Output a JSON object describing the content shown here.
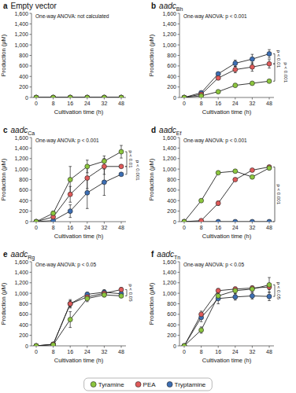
{
  "chart_data": [
    {
      "type": "line",
      "panel_label": "a",
      "title": "Empty vector",
      "legend": "bottom",
      "anova": "One-way ANOVA: not calculated",
      "annotations": [],
      "x_label": "Cultivation time (h)",
      "y_label": "Production (μM)",
      "categories": [
        0,
        8,
        16,
        24,
        32,
        48
      ],
      "ylim": [
        0,
        1600
      ],
      "yticks": [
        0,
        200,
        400,
        600,
        800,
        {
          "value": 1000,
          "label": "1,000"
        },
        {
          "value": 1200,
          "label": "1,200"
        },
        {
          "value": 1400,
          "label": "1,400"
        },
        {
          "value": 1600,
          "label": "1,600"
        }
      ],
      "series": [
        {
          "name": "Tyramine",
          "color": "#8cc63e",
          "marker": "circle",
          "values": [
            0,
            0,
            0,
            0,
            0,
            0
          ],
          "errors": [
            0,
            0,
            0,
            0,
            0,
            0
          ]
        },
        {
          "name": "PEA",
          "color": "#e05a5a",
          "marker": "circle",
          "values": [
            0,
            0,
            0,
            0,
            0,
            0
          ],
          "errors": [
            0,
            0,
            0,
            0,
            0,
            0
          ]
        },
        {
          "name": "Tryptamine",
          "color": "#3c6eb4",
          "marker": "circle",
          "values": [
            0,
            0,
            0,
            0,
            0,
            0
          ],
          "errors": [
            0,
            0,
            0,
            0,
            0,
            0
          ]
        }
      ]
    },
    {
      "type": "line",
      "panel_label": "b",
      "title": "aadc",
      "title_subscript": "Bh",
      "anova": "One-way ANOVA: p < 0.001",
      "annotations": [
        {
          "text": "p < 0.01",
          "series": [
            "PEA",
            "Tryptamine"
          ]
        },
        {
          "text": "p < 0.001",
          "series": [
            "Tyramine",
            "PEA"
          ]
        }
      ],
      "x_label": "Cultivation time (h)",
      "y_label": "Production (μM)",
      "categories": [
        0,
        8,
        16,
        24,
        32,
        48
      ],
      "ylim": [
        0,
        1600
      ],
      "yticks": [
        0,
        200,
        400,
        600,
        800,
        {
          "value": 1000,
          "label": "1,000"
        },
        {
          "value": 1200,
          "label": "1,200"
        },
        {
          "value": 1400,
          "label": "1,400"
        },
        {
          "value": 1600,
          "label": "1,600"
        }
      ],
      "series": [
        {
          "name": "Tyramine",
          "color": "#8cc63e",
          "marker": "circle",
          "values": [
            0,
            30,
            110,
            230,
            270,
            310
          ],
          "errors": [
            0,
            5,
            20,
            30,
            20,
            20
          ]
        },
        {
          "name": "PEA",
          "color": "#e05a5a",
          "marker": "circle",
          "values": [
            0,
            60,
            370,
            530,
            580,
            640
          ],
          "errors": [
            0,
            10,
            30,
            60,
            80,
            80
          ]
        },
        {
          "name": "Tryptamine",
          "color": "#3c6eb4",
          "marker": "circle",
          "values": [
            0,
            90,
            450,
            650,
            730,
            830
          ],
          "errors": [
            0,
            15,
            30,
            60,
            90,
            80
          ]
        }
      ]
    },
    {
      "type": "line",
      "panel_label": "c",
      "title": "aadc",
      "title_subscript": "Ca",
      "anova": "One-way ANOVA: p < 0.001",
      "annotations": [
        {
          "text": "p < 0.01",
          "series": [
            "Tyramine",
            "PEA"
          ]
        },
        {
          "text": "p < 0.001",
          "series": [
            "PEA",
            "Tryptamine"
          ]
        }
      ],
      "x_label": "Cultivation time (h)",
      "y_label": "Production (μM)",
      "categories": [
        0,
        8,
        16,
        24,
        32,
        48
      ],
      "ylim": [
        0,
        1600
      ],
      "yticks": [
        0,
        200,
        400,
        600,
        800,
        {
          "value": 1000,
          "label": "1,000"
        },
        {
          "value": 1200,
          "label": "1,200"
        },
        {
          "value": 1400,
          "label": "1,400"
        },
        {
          "value": 1600,
          "label": "1,600"
        }
      ],
      "series": [
        {
          "name": "Tyramine",
          "color": "#8cc63e",
          "marker": "circle",
          "values": [
            0,
            160,
            800,
            1050,
            1150,
            1330
          ],
          "errors": [
            0,
            40,
            250,
            120,
            100,
            120
          ]
        },
        {
          "name": "PEA",
          "color": "#e05a5a",
          "marker": "circle",
          "values": [
            0,
            90,
            520,
            830,
            1050,
            1050
          ],
          "errors": [
            0,
            20,
            150,
            200,
            150,
            20
          ]
        },
        {
          "name": "Tryptamine",
          "color": "#3c6eb4",
          "marker": "circle",
          "values": [
            0,
            20,
            200,
            550,
            750,
            900
          ],
          "errors": [
            0,
            10,
            120,
            300,
            250,
            20
          ]
        }
      ]
    },
    {
      "type": "line",
      "panel_label": "d",
      "title": "aadc",
      "title_subscript": "Ef",
      "anova": "One-way ANOVA: p < 0.001",
      "annotations": [
        {
          "text": "p < 0.001",
          "series": [
            "PEA",
            "Tryptamine"
          ]
        }
      ],
      "x_label": "Cultivation time (h)",
      "y_label": "Production (μM)",
      "categories": [
        0,
        8,
        16,
        24,
        32,
        48
      ],
      "ylim": [
        0,
        1600
      ],
      "yticks": [
        0,
        200,
        400,
        600,
        800,
        {
          "value": 1000,
          "label": "1,000"
        },
        {
          "value": 1200,
          "label": "1,200"
        },
        {
          "value": 1400,
          "label": "1,400"
        },
        {
          "value": 1600,
          "label": "1,600"
        }
      ],
      "series": [
        {
          "name": "Tyramine",
          "color": "#8cc63e",
          "marker": "circle",
          "values": [
            0,
            400,
            930,
            960,
            850,
            1020
          ],
          "errors": [
            0,
            30,
            20,
            20,
            20,
            30
          ]
        },
        {
          "name": "PEA",
          "color": "#e05a5a",
          "marker": "circle",
          "values": [
            0,
            20,
            350,
            800,
            980,
            1040
          ],
          "errors": [
            0,
            10,
            40,
            20,
            20,
            30
          ]
        },
        {
          "name": "Tryptamine",
          "color": "#3c6eb4",
          "marker": "circle",
          "values": [
            0,
            0,
            0,
            0,
            0,
            0
          ],
          "errors": [
            0,
            0,
            0,
            0,
            0,
            0
          ]
        }
      ]
    },
    {
      "type": "line",
      "panel_label": "e",
      "title": "aadc",
      "title_subscript": "Rg",
      "anova": "One-way ANOVA: p < 0.05",
      "annotations": [
        {
          "text": "p < 0.05",
          "series": [
            "Tyramine",
            "PEA"
          ]
        }
      ],
      "x_label": "Cultivation time (h)",
      "y_label": "Production (μM)",
      "categories": [
        0,
        8,
        16,
        24,
        32,
        48
      ],
      "ylim": [
        0,
        1600
      ],
      "yticks": [
        0,
        200,
        400,
        600,
        800,
        {
          "value": 1000,
          "label": "1,000"
        },
        {
          "value": 1200,
          "label": "1,200"
        },
        {
          "value": 1400,
          "label": "1,400"
        },
        {
          "value": 1600,
          "label": "1,600"
        }
      ],
      "series": [
        {
          "name": "Tyramine",
          "color": "#8cc63e",
          "marker": "circle",
          "values": [
            0,
            20,
            500,
            900,
            970,
            950
          ],
          "errors": [
            0,
            10,
            150,
            60,
            40,
            30
          ]
        },
        {
          "name": "PEA",
          "color": "#e05a5a",
          "marker": "circle",
          "values": [
            0,
            30,
            800,
            930,
            1000,
            1070
          ],
          "errors": [
            0,
            10,
            80,
            40,
            30,
            40
          ]
        },
        {
          "name": "Tryptamine",
          "color": "#3c6eb4",
          "marker": "circle",
          "values": [
            0,
            30,
            800,
            980,
            1020,
            990
          ],
          "errors": [
            0,
            10,
            60,
            40,
            50,
            40
          ]
        }
      ]
    },
    {
      "type": "line",
      "panel_label": "f",
      "title": "aadc",
      "title_subscript": "Tn",
      "anova": "One-way ANOVA: p < 0.05",
      "annotations": [
        {
          "text": "p < 0.05",
          "series": [
            "Tyramine",
            "Tryptamine"
          ]
        }
      ],
      "x_label": "Cultivation time (h)",
      "y_label": "Production (μM)",
      "categories": [
        0,
        8,
        16,
        24,
        32,
        48
      ],
      "ylim": [
        0,
        1600
      ],
      "yticks": [
        0,
        200,
        400,
        600,
        800,
        {
          "value": 1000,
          "label": "1,000"
        },
        {
          "value": 1200,
          "label": "1,200"
        },
        {
          "value": 1400,
          "label": "1,400"
        },
        {
          "value": 1600,
          "label": "1,600"
        }
      ],
      "series": [
        {
          "name": "Tyramine",
          "color": "#8cc63e",
          "marker": "circle",
          "values": [
            0,
            300,
            950,
            1050,
            1080,
            1160
          ],
          "errors": [
            0,
            60,
            40,
            60,
            50,
            140
          ]
        },
        {
          "name": "PEA",
          "color": "#e05a5a",
          "marker": "circle",
          "values": [
            0,
            600,
            1050,
            1080,
            1100,
            1120
          ],
          "errors": [
            0,
            60,
            40,
            40,
            40,
            50
          ]
        },
        {
          "name": "Tryptamine",
          "color": "#3c6eb4",
          "marker": "circle",
          "values": [
            0,
            540,
            900,
            930,
            950,
            940
          ],
          "errors": [
            0,
            80,
            100,
            60,
            60,
            80
          ]
        }
      ]
    }
  ]
}
